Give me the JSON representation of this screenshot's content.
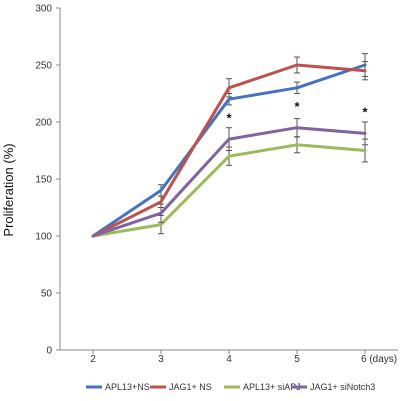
{
  "chart_data": {
    "type": "line",
    "title": "",
    "xlabel": "",
    "ylabel": "Proliferation (%)",
    "x": [
      2,
      3,
      4,
      5,
      6
    ],
    "x_tick_labels": [
      "2",
      "3",
      "4",
      "5",
      "6  (days)"
    ],
    "ylim": [
      0,
      300
    ],
    "y_ticks": [
      0,
      50,
      100,
      150,
      200,
      250,
      300
    ],
    "grid": false,
    "legend_position": "bottom",
    "series": [
      {
        "name": "APL13+NS",
        "color": "#4472c4",
        "values": [
          100,
          140,
          220,
          230,
          250
        ],
        "errors": [
          0,
          5,
          5,
          5,
          10
        ]
      },
      {
        "name": "JAG1+ NS",
        "color": "#c0504d",
        "values": [
          100,
          130,
          230,
          250,
          245
        ],
        "errors": [
          0,
          5,
          8,
          7,
          8
        ]
      },
      {
        "name": "APL13+ siAPJ",
        "color": "#9bbb59",
        "values": [
          100,
          110,
          170,
          180,
          175
        ],
        "errors": [
          0,
          8,
          8,
          7,
          10
        ]
      },
      {
        "name": "JAG1+ siNotch3",
        "color": "#8064a2",
        "values": [
          100,
          120,
          185,
          195,
          190
        ],
        "errors": [
          0,
          8,
          10,
          8,
          10
        ]
      }
    ],
    "annotations": [
      {
        "x": 4,
        "y": 205,
        "text": "*"
      },
      {
        "x": 5,
        "y": 215,
        "text": "*"
      },
      {
        "x": 6,
        "y": 210,
        "text": "*"
      }
    ]
  }
}
